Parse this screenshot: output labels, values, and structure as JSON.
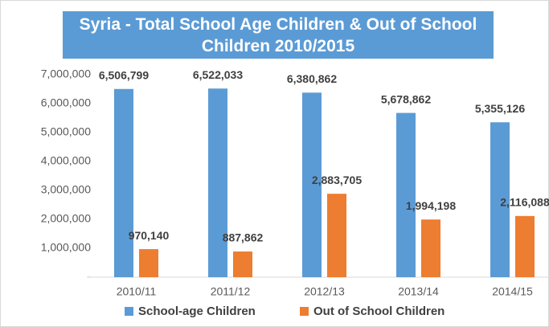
{
  "chart_data": {
    "type": "bar",
    "title": "Syria - Total School Age Children & Out of School Children 2010/2015",
    "categories": [
      "2010/11",
      "2011/12",
      "2012/13",
      "2013/14",
      "2014/15"
    ],
    "series": [
      {
        "name": "School-age Children",
        "color": "#5b9bd5",
        "values": [
          6506799,
          6522033,
          6380862,
          5678862,
          5355126
        ],
        "value_labels": [
          "6,506,799",
          "6,522,033",
          "6,380,862",
          "5,678,862",
          "5,355,126"
        ]
      },
      {
        "name": "Out of School Children",
        "color": "#ed7d31",
        "values": [
          970140,
          887862,
          2883705,
          1994198,
          2116088
        ],
        "value_labels": [
          "970,140",
          "887,862",
          "2,883,705",
          "1,994,198",
          "2,116,088"
        ]
      }
    ],
    "ylim": [
      0,
      7000000
    ],
    "yticks": [
      {
        "value": 0,
        "label": "-"
      },
      {
        "value": 1000000,
        "label": "1,000,000"
      },
      {
        "value": 2000000,
        "label": "2,000,000"
      },
      {
        "value": 3000000,
        "label": "3,000,000"
      },
      {
        "value": 4000000,
        "label": "4,000,000"
      },
      {
        "value": 5000000,
        "label": "5,000,000"
      },
      {
        "value": 6000000,
        "label": "6,000,000"
      },
      {
        "value": 7000000,
        "label": "7,000,000"
      }
    ],
    "grid": false,
    "legend": "bottom"
  }
}
